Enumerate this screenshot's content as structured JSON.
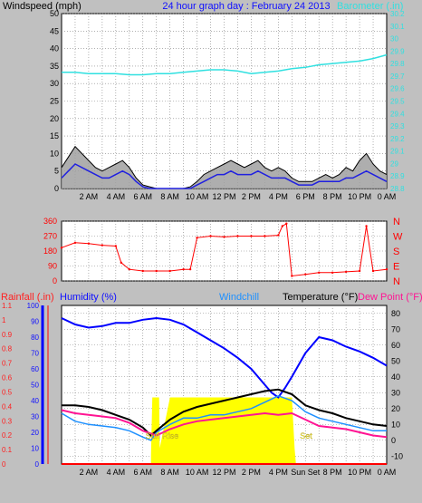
{
  "header": {
    "left_label": "Windspeed (mph)",
    "title": "24 hour graph day : February 24 2013",
    "right_label": "Barometer (.in)"
  },
  "time_axis_labels": [
    "2 AM",
    "4 AM",
    "6 AM",
    "8 AM",
    "10 AM",
    "12 PM",
    "2 PM",
    "4 PM",
    "6 PM",
    "8 PM",
    "10 PM",
    "0 AM"
  ],
  "time_axis_labels_bottom": [
    "2 AM",
    "4 AM",
    "6 AM",
    "8 AM",
    "10 AM",
    "12 PM",
    "2 PM",
    "4 PM",
    "Sun Set",
    "8 PM",
    "10 PM",
    "0 AM"
  ],
  "colors": {
    "background": "#c0c0c0",
    "plot": "#ffffff",
    "grid": "#808080",
    "wind_gust": "#000000",
    "wind_avg": "#2020e0",
    "wind_fill": "#a0a0a0",
    "barometer": "#30e0e0",
    "direction": "#ff0000",
    "humidity": "#0000ff",
    "windchill": "#1e90ff",
    "temperature": "#000000",
    "dew_point": "#ff1493",
    "solar": "#ffff00",
    "rain": "#ff0000",
    "sunrise_label": "#ffff40"
  },
  "chart_data": [
    {
      "type": "line",
      "name": "wind_barometer",
      "left_axis": {
        "label": "Windspeed (mph)",
        "min": 0,
        "max": 50,
        "ticks": [
          0,
          5,
          10,
          15,
          20,
          25,
          30,
          35,
          40,
          45,
          50
        ]
      },
      "right_axis": {
        "label": "Barometer (.in)",
        "min": 28.8,
        "max": 30.2,
        "ticks": [
          "28.8",
          "28.9",
          "29",
          "29.1",
          "29.2",
          "29.3",
          "29.4",
          "29.5",
          "29.6",
          "29.7",
          "29.8",
          "29.9",
          "30",
          "30.1",
          "30.2"
        ]
      },
      "x_hours": [
        0,
        24
      ],
      "barometer": {
        "hours": [
          0,
          1,
          2,
          3,
          4,
          5,
          6,
          7,
          8,
          9,
          10,
          11,
          12,
          13,
          14,
          15,
          16,
          17,
          18,
          19,
          20,
          21,
          22,
          23,
          24
        ],
        "values": [
          29.73,
          29.73,
          29.72,
          29.72,
          29.72,
          29.71,
          29.71,
          29.72,
          29.72,
          29.73,
          29.74,
          29.75,
          29.75,
          29.74,
          29.72,
          29.73,
          29.74,
          29.76,
          29.77,
          29.79,
          29.8,
          29.81,
          29.82,
          29.84,
          29.87
        ]
      },
      "wind_gust": {
        "hours": [
          0,
          0.5,
          1,
          1.5,
          2,
          2.5,
          3,
          3.5,
          4,
          4.5,
          5,
          5.5,
          6,
          6.5,
          7,
          7.5,
          8,
          8.5,
          9,
          9.5,
          10,
          10.5,
          11,
          11.5,
          12,
          12.5,
          13,
          13.5,
          14,
          14.5,
          15,
          15.5,
          16,
          16.5,
          17,
          17.5,
          18,
          18.5,
          19,
          19.5,
          20,
          20.5,
          21,
          21.5,
          22,
          22.5,
          23,
          23.5,
          24
        ],
        "values": [
          6,
          9,
          12,
          10,
          8,
          6,
          5,
          6,
          7,
          8,
          6,
          3,
          1,
          0.5,
          0,
          0,
          0,
          0,
          0,
          0.5,
          2,
          4,
          5,
          6,
          7,
          8,
          7,
          6,
          7,
          8,
          6,
          5,
          6,
          5,
          3,
          2,
          2,
          2,
          3,
          4,
          3,
          4,
          6,
          5,
          8,
          10,
          7,
          5,
          4
        ]
      },
      "wind_avg": {
        "hours": [
          0,
          0.5,
          1,
          1.5,
          2,
          2.5,
          3,
          3.5,
          4,
          4.5,
          5,
          5.5,
          6,
          6.5,
          7,
          7.5,
          8,
          8.5,
          9,
          9.5,
          10,
          10.5,
          11,
          11.5,
          12,
          12.5,
          13,
          13.5,
          14,
          14.5,
          15,
          15.5,
          16,
          16.5,
          17,
          17.5,
          18,
          18.5,
          19,
          19.5,
          20,
          20.5,
          21,
          21.5,
          22,
          22.5,
          23,
          23.5,
          24
        ],
        "values": [
          3,
          5,
          7,
          6,
          5,
          4,
          3,
          3,
          4,
          5,
          4,
          2,
          0.5,
          0,
          0,
          0,
          0,
          0,
          0,
          0,
          1,
          2,
          3,
          4,
          4,
          5,
          4,
          4,
          4,
          5,
          4,
          3,
          3,
          3,
          2,
          1,
          1,
          1,
          2,
          2,
          2,
          2,
          3,
          3,
          4,
          5,
          4,
          3,
          2
        ]
      }
    },
    {
      "type": "scatter",
      "name": "wind_direction",
      "left_axis": {
        "min": 0,
        "max": 360,
        "ticks": [
          0,
          90,
          180,
          270,
          360
        ]
      },
      "right_axis": {
        "labels": [
          "N",
          "W",
          "S",
          "E",
          "N"
        ]
      },
      "x_hours": [
        0,
        24
      ],
      "direction": {
        "hours": [
          0,
          1,
          2,
          3,
          4,
          4.4,
          5,
          6,
          7,
          8,
          9,
          9.5,
          10,
          11,
          12,
          13,
          14,
          15,
          16,
          16.3,
          16.6,
          17,
          18,
          19,
          20,
          21,
          22,
          22.5,
          23,
          24
        ],
        "values": [
          200,
          230,
          225,
          215,
          210,
          110,
          70,
          60,
          60,
          60,
          70,
          70,
          260,
          270,
          265,
          270,
          270,
          270,
          275,
          330,
          345,
          30,
          40,
          50,
          50,
          55,
          60,
          330,
          60,
          70
        ]
      }
    },
    {
      "type": "line",
      "name": "temperature_humidity",
      "left_axis_rain": {
        "label": "Rainfall (.in)",
        "min": 0,
        "max": 1.1,
        "ticks": [
          "0",
          "0.1",
          "0.2",
          "0.3",
          "0.4",
          "0.5",
          "0.6",
          "0.7",
          "0.8",
          "0.9",
          "1",
          "1.1"
        ]
      },
      "left_axis_humidity": {
        "label": "Humidity (%)",
        "min": 0,
        "max": 100,
        "ticks": [
          0,
          10,
          20,
          30,
          40,
          50,
          60,
          70,
          80,
          90,
          100
        ]
      },
      "right_axis": {
        "label": "Temperature (°F)",
        "min": -15,
        "max": 85,
        "ticks": [
          -10,
          0,
          10,
          20,
          30,
          40,
          50,
          60,
          70,
          80
        ]
      },
      "legend": [
        "Windchill",
        "Temperature (°F)",
        "Dew Point (°F)"
      ],
      "annotations": [
        "Sun Rise",
        "Set"
      ],
      "x_hours": [
        0,
        24
      ],
      "humidity": {
        "hours": [
          0,
          1,
          2,
          3,
          4,
          5,
          6,
          7,
          8,
          9,
          10,
          11,
          12,
          13,
          14,
          15,
          15.5,
          16,
          16.5,
          17,
          18,
          19,
          20,
          21,
          22,
          23,
          24
        ],
        "values": [
          92,
          88,
          86,
          87,
          89,
          89,
          91,
          92,
          91,
          88,
          83,
          78,
          73,
          67,
          60,
          50,
          45,
          42,
          48,
          55,
          70,
          80,
          78,
          74,
          71,
          67,
          62
        ]
      },
      "temperature": {
        "hours": [
          0,
          1,
          2,
          3,
          4,
          5,
          6,
          6.6,
          7,
          8,
          9,
          10,
          11,
          12,
          13,
          14,
          15,
          16,
          17,
          18,
          19,
          20,
          21,
          22,
          23,
          24
        ],
        "values": [
          22,
          22,
          21,
          19,
          16,
          13,
          8,
          3,
          6,
          13,
          18,
          21,
          23,
          25,
          27,
          29,
          31,
          32,
          29,
          22,
          19,
          17,
          14,
          12,
          10,
          9
        ]
      },
      "windchill": {
        "hours": [
          0,
          1,
          2,
          3,
          4,
          5,
          6,
          6.6,
          7,
          8,
          9,
          10,
          11,
          12,
          13,
          14,
          15,
          16,
          17,
          18,
          19,
          20,
          21,
          22,
          23,
          24
        ],
        "values": [
          17,
          12,
          10,
          9,
          8,
          6,
          2,
          0,
          5,
          10,
          14,
          14,
          16,
          16,
          18,
          20,
          24,
          28,
          25,
          18,
          14,
          12,
          10,
          8,
          6,
          6
        ]
      },
      "dew_point": {
        "hours": [
          0,
          1,
          2,
          3,
          4,
          5,
          6,
          7,
          8,
          9,
          10,
          11,
          12,
          13,
          14,
          15,
          16,
          17,
          18,
          19,
          20,
          21,
          22,
          23,
          24
        ],
        "values": [
          19,
          17,
          16,
          15,
          14,
          11,
          6,
          3,
          7,
          10,
          12,
          13,
          14,
          15,
          16,
          17,
          16,
          17,
          13,
          9,
          8,
          7,
          5,
          3,
          2
        ]
      },
      "solar_percent": {
        "hours": [
          6.6,
          6.7,
          7.2,
          7.25,
          8,
          9,
          10,
          11,
          12,
          13,
          14,
          15,
          16,
          16.5,
          17,
          17.2,
          17.3
        ],
        "values": [
          5,
          42,
          42,
          10,
          42,
          42,
          42,
          42,
          42,
          42,
          42,
          42,
          42,
          42,
          42,
          10,
          0
        ]
      },
      "rain": {
        "hours": [
          0,
          24
        ],
        "values": [
          0,
          0
        ]
      }
    }
  ]
}
